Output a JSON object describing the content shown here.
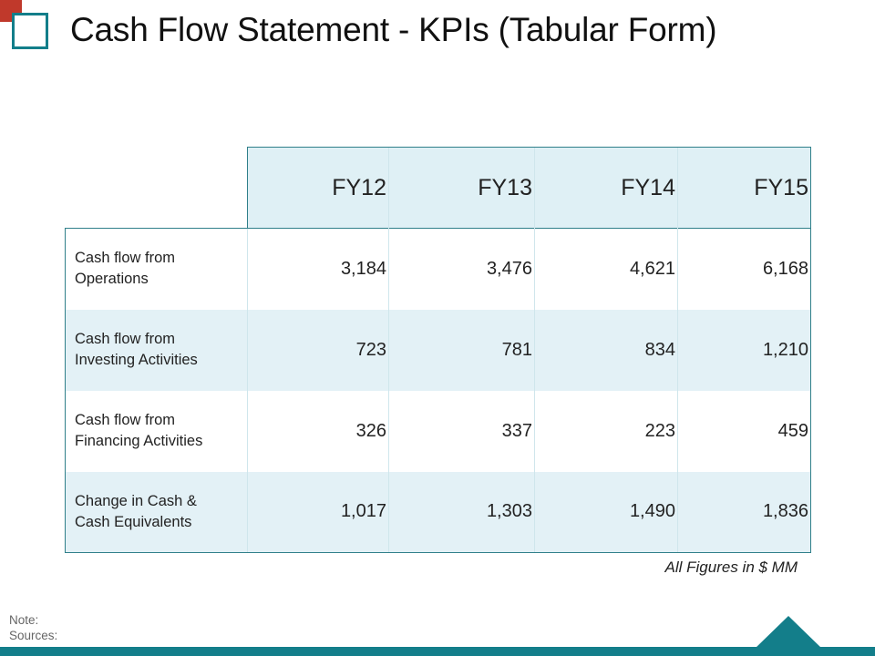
{
  "slide": {
    "title": "Cash Flow Statement - KPIs (Tabular Form)",
    "units_note": "All Figures in $ MM",
    "note_label": "Note:",
    "sources_label": "Sources:"
  },
  "table": {
    "headers": [
      "FY12",
      "FY13",
      "FY14",
      "FY15"
    ],
    "rows": [
      {
        "label_line1": "Cash flow from",
        "label_line2": "Operations",
        "values": [
          "3,184",
          "3,476",
          "4,621",
          "6,168"
        ]
      },
      {
        "label_line1": "Cash flow from",
        "label_line2": "Investing Activities",
        "values": [
          "723",
          "781",
          "834",
          "1,210"
        ]
      },
      {
        "label_line1": "Cash flow from",
        "label_line2": "Financing Activities",
        "values": [
          "326",
          "337",
          "223",
          "459"
        ]
      },
      {
        "label_line1": "Change in Cash &",
        "label_line2": "Cash Equivalents",
        "values": [
          "1,017",
          "1,303",
          "1,490",
          "1,836"
        ]
      }
    ]
  },
  "colors": {
    "accent_teal": "#137e8a",
    "accent_red": "#c0392b",
    "row_band": "#e3f1f6",
    "header_fill": "#dff0f5"
  },
  "icons": [
    "logo-square-icon"
  ]
}
